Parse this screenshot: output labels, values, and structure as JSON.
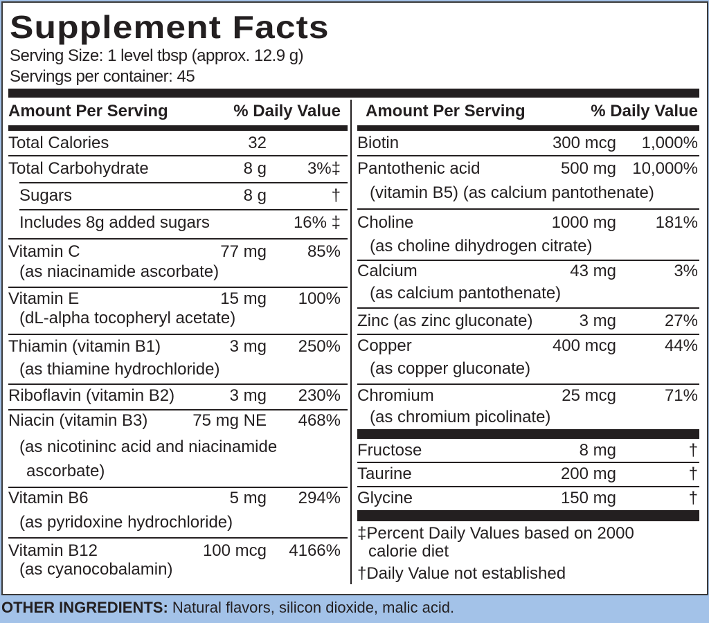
{
  "title": "Supplement Facts",
  "serving_size": "Serving Size: 1 level tbsp (approx. 12.9 g)",
  "servings_per_container": "Servings per container: 45",
  "header": {
    "amount": "Amount Per Serving",
    "dv": "% Daily Value"
  },
  "left_rows": [
    {
      "name": "Total Calories",
      "amount": "32",
      "dv": ""
    },
    {
      "name": "Total Carbohydrate",
      "amount": "8 g",
      "dv": "3%‡"
    },
    {
      "name": "Sugars",
      "amount": "8 g",
      "dv": "†"
    },
    {
      "name": "Includes 8g added sugars",
      "amount": "",
      "dv": "16% ‡"
    },
    {
      "name": "Vitamin C",
      "amount": "77 mg",
      "dv": "85%",
      "sub": [
        "(as niacinamide ascorbate)"
      ]
    },
    {
      "name": "Vitamin E",
      "amount": "15 mg",
      "dv": "100%",
      "sub": [
        "(dL-alpha tocopheryl acetate)"
      ]
    },
    {
      "name": "Thiamin (vitamin B1)",
      "amount": "3 mg",
      "dv": "250%",
      "sub": [
        "(as thiamine hydrochloride)"
      ]
    },
    {
      "name": "Riboflavin (vitamin B2)",
      "amount": "3 mg",
      "dv": "230%"
    },
    {
      "name": "Niacin (vitamin B3)",
      "amount": "75 mg NE",
      "dv": "468%",
      "sub": [
        "(as nicotininc acid and niacinamide",
        "ascorbate)"
      ]
    },
    {
      "name": "Vitamin B6",
      "amount": "5 mg",
      "dv": "294%",
      "sub": [
        "(as pyridoxine hydrochloride)"
      ]
    },
    {
      "name": "Vitamin B12",
      "amount": "100 mcg",
      "dv": "4166%",
      "sub": [
        "(as cyanocobalamin)"
      ]
    }
  ],
  "right_rows": [
    {
      "name": "Biotin",
      "amount": "300 mcg",
      "dv": "1,000%"
    },
    {
      "name": "Pantothenic acid",
      "amount": "500 mg",
      "dv": "10,000%",
      "sub": [
        "(vitamin B5) (as calcium pantothenate)"
      ]
    },
    {
      "name": "Choline",
      "amount": "1000 mg",
      "dv": "181%",
      "sub": [
        "(as choline dihydrogen citrate)"
      ]
    },
    {
      "name": "Calcium",
      "amount": "43 mg",
      "dv": "3%",
      "sub": [
        "(as calcium pantothenate)"
      ]
    },
    {
      "name": "Zinc (as zinc gluconate)",
      "amount": "3 mg",
      "dv": "27%"
    },
    {
      "name": "Copper",
      "amount": "400 mcg",
      "dv": "44%",
      "sub": [
        "(as copper gluconate)"
      ]
    },
    {
      "name": "Chromium",
      "amount": "25 mcg",
      "dv": "71%",
      "sub": [
        "(as chromium picolinate)"
      ]
    },
    {
      "name": "Fructose",
      "amount": "8 mg",
      "dv": "†"
    },
    {
      "name": "Taurine",
      "amount": "200 mg",
      "dv": "†"
    },
    {
      "name": "Glycine",
      "amount": "150 mg",
      "dv": "†"
    }
  ],
  "footnotes": [
    "‡Percent Daily Values based on 2000",
    "calorie diet",
    "†Daily Value not established"
  ],
  "other_ingredients": {
    "label": "OTHER INGREDIENTS:",
    "text": " Natural flavors, silicon dioxide, malic acid."
  }
}
